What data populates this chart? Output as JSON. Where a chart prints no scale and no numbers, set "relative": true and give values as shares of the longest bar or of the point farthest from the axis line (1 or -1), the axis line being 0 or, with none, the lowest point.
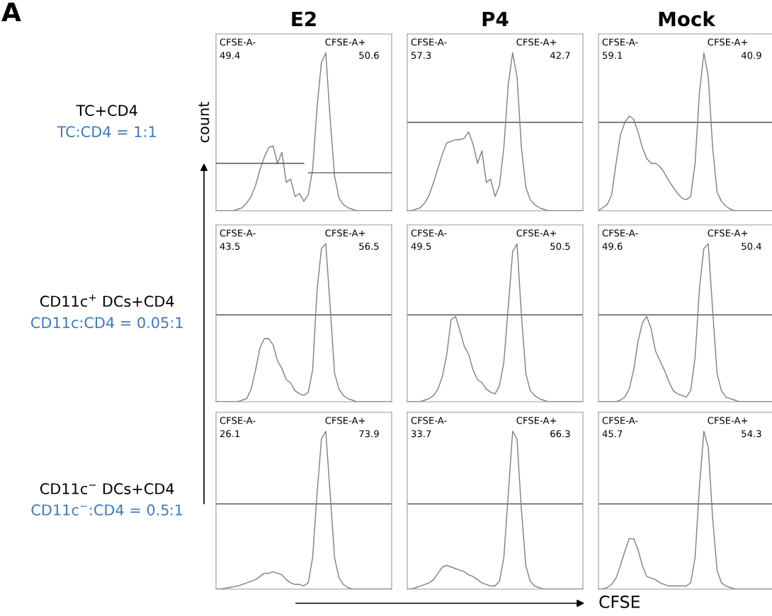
{
  "chart_data": [
    {
      "type": "line",
      "title": "E2",
      "ylabel": "count",
      "relative": true,
      "tick_labels": false,
      "categories": [
        null,
        null,
        null,
        null,
        null,
        null,
        null,
        null,
        null,
        null,
        null,
        null,
        null,
        null,
        null,
        null,
        null,
        null,
        null,
        null,
        null,
        null,
        null,
        null,
        null,
        null,
        null,
        null,
        null,
        null,
        null,
        null,
        null,
        null,
        null,
        null,
        null,
        null,
        null,
        null,
        null
      ],
      "series": [
        {
          "color": "#7f7f7f",
          "values": [
            0,
            0,
            0,
            0,
            0,
            0.01,
            0.02,
            0.05,
            0.09,
            0.16,
            0.26,
            0.34,
            0.4,
            0.41,
            0.3,
            0.37,
            0.18,
            0.2,
            0.09,
            0.11,
            0.06,
            0.1,
            0.26,
            0.65,
            0.94,
            1.0,
            0.58,
            0.22,
            0.08,
            0.04,
            0.02,
            0.01,
            0,
            0,
            0,
            0,
            0,
            0,
            0,
            0,
            0
          ]
        },
        {
          "type": "line",
          "color": "#555555",
          "values": [
            0.3,
            0.3,
            0.3,
            0.3,
            0.3,
            0.3,
            0.3,
            0.3,
            0.3,
            0.3,
            0.3,
            0.3,
            0.3,
            0.3,
            0.3,
            0.3,
            0.3,
            0.3,
            0.3,
            0.3,
            0.3,
            null,
            null,
            null,
            null,
            null,
            null,
            null,
            null,
            null,
            null,
            null,
            null,
            null,
            null,
            null,
            null,
            null,
            null,
            null,
            null
          ]
        },
        {
          "type": "line",
          "color": "#555555",
          "values": [
            null,
            null,
            null,
            null,
            null,
            null,
            null,
            null,
            null,
            null,
            null,
            null,
            null,
            null,
            null,
            null,
            null,
            null,
            null,
            null,
            null,
            0.24,
            0.24,
            0.24,
            0.24,
            0.24,
            0.24,
            0.24,
            0.24,
            0.24,
            0.24,
            0.24,
            0.24,
            0.24,
            0.24,
            0.24,
            0.24,
            0.24,
            0.24,
            0.24,
            0.24
          ]
        }
      ],
      "annotations": [
        "CFSE-A-",
        "49.4",
        "CFSE-A+",
        "50.6",
        "TC+CD4",
        "TC:CD4 = 1:1",
        "A"
      ]
    },
    {
      "type": "line",
      "title": "P4",
      "relative": true,
      "tick_labels": false,
      "categories": [
        null,
        null,
        null,
        null,
        null,
        null,
        null,
        null,
        null,
        null,
        null,
        null,
        null,
        null,
        null,
        null,
        null,
        null,
        null,
        null,
        null,
        null,
        null,
        null,
        null,
        null,
        null,
        null,
        null,
        null,
        null,
        null,
        null,
        null,
        null,
        null,
        null,
        null,
        null,
        null,
        null
      ],
      "series": [
        {
          "color": "#7f7f7f",
          "values": [
            0,
            0,
            0.01,
            0.02,
            0.05,
            0.1,
            0.18,
            0.27,
            0.36,
            0.43,
            0.44,
            0.45,
            0.45,
            0.46,
            0.5,
            0.42,
            0.3,
            0.38,
            0.18,
            0.2,
            0.09,
            0.16,
            0.4,
            0.8,
            1.0,
            0.85,
            0.4,
            0.15,
            0.07,
            0.04,
            0.02,
            0.01,
            0,
            0,
            0,
            0,
            0,
            0,
            0,
            0,
            0
          ]
        }
      ],
      "ref_lines": [
        {
          "axis": "y",
          "value": 0.56,
          "color": "#555555"
        }
      ],
      "annotations": [
        "CFSE-A-",
        "57.3",
        "CFSE-A+",
        "42.7"
      ]
    },
    {
      "type": "line",
      "title": "Mock",
      "relative": true,
      "tick_labels": false,
      "categories": [
        null,
        null,
        null,
        null,
        null,
        null,
        null,
        null,
        null,
        null,
        null,
        null,
        null,
        null,
        null,
        null,
        null,
        null,
        null,
        null,
        null,
        null,
        null,
        null,
        null,
        null,
        null,
        null,
        null,
        null,
        null,
        null,
        null,
        null,
        null,
        null,
        null,
        null,
        null,
        null,
        null
      ],
      "series": [
        {
          "color": "#7f7f7f",
          "values": [
            0,
            0.02,
            0.04,
            0.1,
            0.3,
            0.48,
            0.56,
            0.6,
            0.58,
            0.5,
            0.4,
            0.33,
            0.3,
            0.3,
            0.28,
            0.24,
            0.19,
            0.15,
            0.11,
            0.08,
            0.07,
            0.09,
            0.3,
            0.75,
            1.0,
            0.85,
            0.4,
            0.12,
            0.06,
            0.03,
            0.01,
            0,
            0,
            0,
            0,
            0,
            0,
            0,
            0,
            0,
            0
          ]
        }
      ],
      "ref_lines": [
        {
          "axis": "y",
          "value": 0.56,
          "color": "#555555"
        }
      ],
      "annotations": [
        "CFSE-A-",
        "59.1",
        "CFSE-A+",
        "40.9"
      ]
    },
    {
      "type": "line",
      "relative": true,
      "tick_labels": false,
      "categories": [
        null,
        null,
        null,
        null,
        null,
        null,
        null,
        null,
        null,
        null,
        null,
        null,
        null,
        null,
        null,
        null,
        null,
        null,
        null,
        null,
        null,
        null,
        null,
        null,
        null,
        null,
        null,
        null,
        null,
        null,
        null,
        null,
        null,
        null,
        null,
        null,
        null,
        null,
        null,
        null,
        null
      ],
      "series": [
        {
          "color": "#7f7f7f",
          "values": [
            0,
            0,
            0,
            0,
            0,
            0,
            0.01,
            0.02,
            0.08,
            0.2,
            0.34,
            0.4,
            0.4,
            0.36,
            0.26,
            0.21,
            0.14,
            0.12,
            0.07,
            0.05,
            0.04,
            0.06,
            0.2,
            0.7,
            0.97,
            1.0,
            0.6,
            0.18,
            0.08,
            0.04,
            0.02,
            0.01,
            0,
            0,
            0,
            0,
            0,
            0,
            0,
            0,
            0
          ]
        }
      ],
      "ref_lines": [
        {
          "axis": "y",
          "value": 0.55,
          "color": "#555555"
        }
      ],
      "annotations": [
        "CFSE-A-",
        "43.5",
        "CFSE-A+",
        "56.5",
        "CD11c$^{+}$ DCs+CD4",
        "CD11c:CD4 = 0.05:1"
      ]
    },
    {
      "type": "line",
      "relative": true,
      "tick_labels": false,
      "categories": [
        null,
        null,
        null,
        null,
        null,
        null,
        null,
        null,
        null,
        null,
        null,
        null,
        null,
        null,
        null,
        null,
        null,
        null,
        null,
        null,
        null,
        null,
        null,
        null,
        null,
        null,
        null,
        null,
        null,
        null,
        null,
        null,
        null,
        null,
        null,
        null,
        null,
        null,
        null,
        null,
        null
      ],
      "series": [
        {
          "color": "#7f7f7f",
          "values": [
            0,
            0,
            0,
            0,
            0.01,
            0.02,
            0.04,
            0.08,
            0.16,
            0.3,
            0.52,
            0.54,
            0.45,
            0.35,
            0.3,
            0.2,
            0.14,
            0.12,
            0.08,
            0.06,
            0.05,
            0.1,
            0.25,
            0.6,
            0.95,
            1.0,
            0.55,
            0.18,
            0.07,
            0.04,
            0.02,
            0.01,
            0,
            0,
            0,
            0,
            0,
            0,
            0,
            0,
            0
          ]
        }
      ],
      "ref_lines": [
        {
          "axis": "y",
          "value": 0.55,
          "color": "#555555"
        }
      ],
      "annotations": [
        "CFSE-A-",
        "49.5",
        "CFSE-A+",
        "50.5"
      ]
    },
    {
      "type": "line",
      "relative": true,
      "tick_labels": false,
      "categories": [
        null,
        null,
        null,
        null,
        null,
        null,
        null,
        null,
        null,
        null,
        null,
        null,
        null,
        null,
        null,
        null,
        null,
        null,
        null,
        null,
        null,
        null,
        null,
        null,
        null,
        null,
        null,
        null,
        null,
        null,
        null,
        null,
        null,
        null,
        null,
        null,
        null,
        null,
        null,
        null,
        null
      ],
      "series": [
        {
          "color": "#7f7f7f",
          "values": [
            0,
            0,
            0,
            0,
            0,
            0.01,
            0.03,
            0.08,
            0.2,
            0.38,
            0.5,
            0.54,
            0.46,
            0.32,
            0.26,
            0.2,
            0.13,
            0.07,
            0.05,
            0.04,
            0.03,
            0.07,
            0.28,
            0.72,
            0.97,
            1.0,
            0.58,
            0.18,
            0.07,
            0.03,
            0.02,
            0.01,
            0,
            0,
            0,
            0,
            0,
            0,
            0,
            0,
            0
          ]
        }
      ],
      "ref_lines": [
        {
          "axis": "y",
          "value": 0.55,
          "color": "#555555"
        }
      ],
      "annotations": [
        "CFSE-A-",
        "49.6",
        "CFSE-A+",
        "50.4"
      ]
    },
    {
      "type": "line",
      "relative": true,
      "tick_labels": false,
      "categories": [
        null,
        null,
        null,
        null,
        null,
        null,
        null,
        null,
        null,
        null,
        null,
        null,
        null,
        null,
        null,
        null,
        null,
        null,
        null,
        null,
        null,
        null,
        null,
        null,
        null,
        null,
        null,
        null,
        null,
        null,
        null,
        null,
        null,
        null,
        null,
        null,
        null,
        null,
        null,
        null,
        null
      ],
      "series": [
        {
          "color": "#7f7f7f",
          "values": [
            0,
            0,
            0.005,
            0.01,
            0.015,
            0.02,
            0.03,
            0.04,
            0.05,
            0.06,
            0.08,
            0.1,
            0.1,
            0.11,
            0.1,
            0.09,
            0.06,
            0.04,
            0.03,
            0.03,
            0.02,
            0.04,
            0.2,
            0.6,
            0.95,
            1.0,
            0.6,
            0.2,
            0.07,
            0.03,
            0.01,
            0,
            0,
            0,
            0,
            0,
            0,
            0,
            0,
            0,
            0
          ]
        }
      ],
      "ref_lines": [
        {
          "axis": "y",
          "value": 0.54,
          "color": "#555555"
        }
      ],
      "annotations": [
        "CFSE-A-",
        "26.1",
        "CFSE-A+",
        "73.9",
        "CD11c$^{−}$ DCs+CD4",
        "CD11c$^{−}$:CD4 = 0.5:1"
      ]
    },
    {
      "type": "line",
      "relative": true,
      "tick_labels": false,
      "categories": [
        null,
        null,
        null,
        null,
        null,
        null,
        null,
        null,
        null,
        null,
        null,
        null,
        null,
        null,
        null,
        null,
        null,
        null,
        null,
        null,
        null,
        null,
        null,
        null,
        null,
        null,
        null,
        null,
        null,
        null,
        null,
        null,
        null,
        null,
        null,
        null,
        null,
        null,
        null,
        null,
        null
      ],
      "series": [
        {
          "color": "#7f7f7f",
          "values": [
            0,
            0,
            0.01,
            0.02,
            0.03,
            0.04,
            0.06,
            0.1,
            0.14,
            0.15,
            0.14,
            0.13,
            0.12,
            0.11,
            0.09,
            0.08,
            0.06,
            0.04,
            0.03,
            0.02,
            0.02,
            0.05,
            0.2,
            0.6,
            1.0,
            0.95,
            0.5,
            0.15,
            0.05,
            0.02,
            0.01,
            0,
            0,
            0,
            0,
            0,
            0,
            0,
            0,
            0,
            0
          ]
        }
      ],
      "ref_lines": [
        {
          "axis": "y",
          "value": 0.54,
          "color": "#555555"
        }
      ],
      "annotations": [
        "CFSE-A-",
        "33.7",
        "CFSE-A+",
        "66.3"
      ]
    },
    {
      "type": "line",
      "xlabel": "CFSE",
      "relative": true,
      "tick_labels": false,
      "categories": [
        null,
        null,
        null,
        null,
        null,
        null,
        null,
        null,
        null,
        null,
        null,
        null,
        null,
        null,
        null,
        null,
        null,
        null,
        null,
        null,
        null,
        null,
        null,
        null,
        null,
        null,
        null,
        null,
        null,
        null,
        null,
        null,
        null,
        null,
        null,
        null,
        null,
        null,
        null,
        null,
        null
      ],
      "series": [
        {
          "color": "#7f7f7f",
          "values": [
            0,
            0,
            0.01,
            0.03,
            0.07,
            0.15,
            0.24,
            0.32,
            0.32,
            0.25,
            0.15,
            0.08,
            0.07,
            0.06,
            0.04,
            0.03,
            0.02,
            0.02,
            0.02,
            0.02,
            0.02,
            0.04,
            0.2,
            0.65,
            1.0,
            0.9,
            0.45,
            0.12,
            0.04,
            0.02,
            0.01,
            0,
            0,
            0,
            0,
            0,
            0,
            0,
            0,
            0,
            0
          ]
        }
      ],
      "ref_lines": [
        {
          "axis": "y",
          "value": 0.54,
          "color": "#555555"
        }
      ],
      "annotations": [
        "CFSE-A-",
        "45.7",
        "CFSE-A+",
        "54.3"
      ]
    }
  ]
}
